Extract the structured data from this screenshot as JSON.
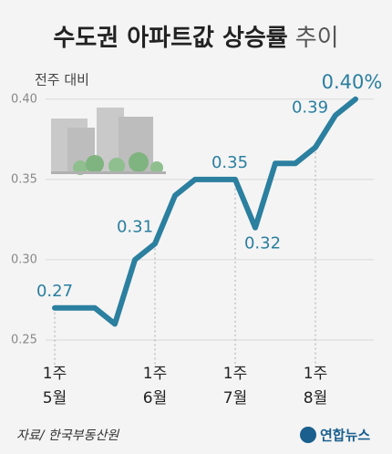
{
  "chart_data": {
    "type": "line",
    "title": "수도권 아파트값 상승률",
    "title_suffix": "추이",
    "subtitle": "전주 대비",
    "source": "자료/ 한국부동산원",
    "logo": "연합뉴스",
    "categories": [
      "1주\n5월",
      null,
      null,
      null,
      null,
      "1주\n6월",
      null,
      null,
      null,
      "1주\n7월",
      null,
      null,
      null,
      "1주\n8월",
      null,
      null
    ],
    "series": [
      {
        "name": "상승률",
        "color": "#2b7f9f",
        "values": [
          0.27,
          0.27,
          0.27,
          0.26,
          0.3,
          0.31,
          0.34,
          0.35,
          0.35,
          0.35,
          0.32,
          0.36,
          0.36,
          0.37,
          0.39,
          0.4
        ],
        "value_labels": [
          "0.27",
          null,
          null,
          null,
          null,
          "0.31",
          null,
          null,
          null,
          "0.35",
          "0.32",
          null,
          null,
          null,
          "0.39",
          "0.40%"
        ]
      }
    ],
    "ylim": [
      0.2375,
      0.405
    ],
    "yticks": [
      {
        "value": 0.25,
        "label": "0.25"
      },
      {
        "value": 0.3,
        "label": "0.30"
      },
      {
        "value": 0.35,
        "label": "0.35"
      },
      {
        "value": 0.4,
        "label": "0.40"
      }
    ],
    "grid": true
  }
}
